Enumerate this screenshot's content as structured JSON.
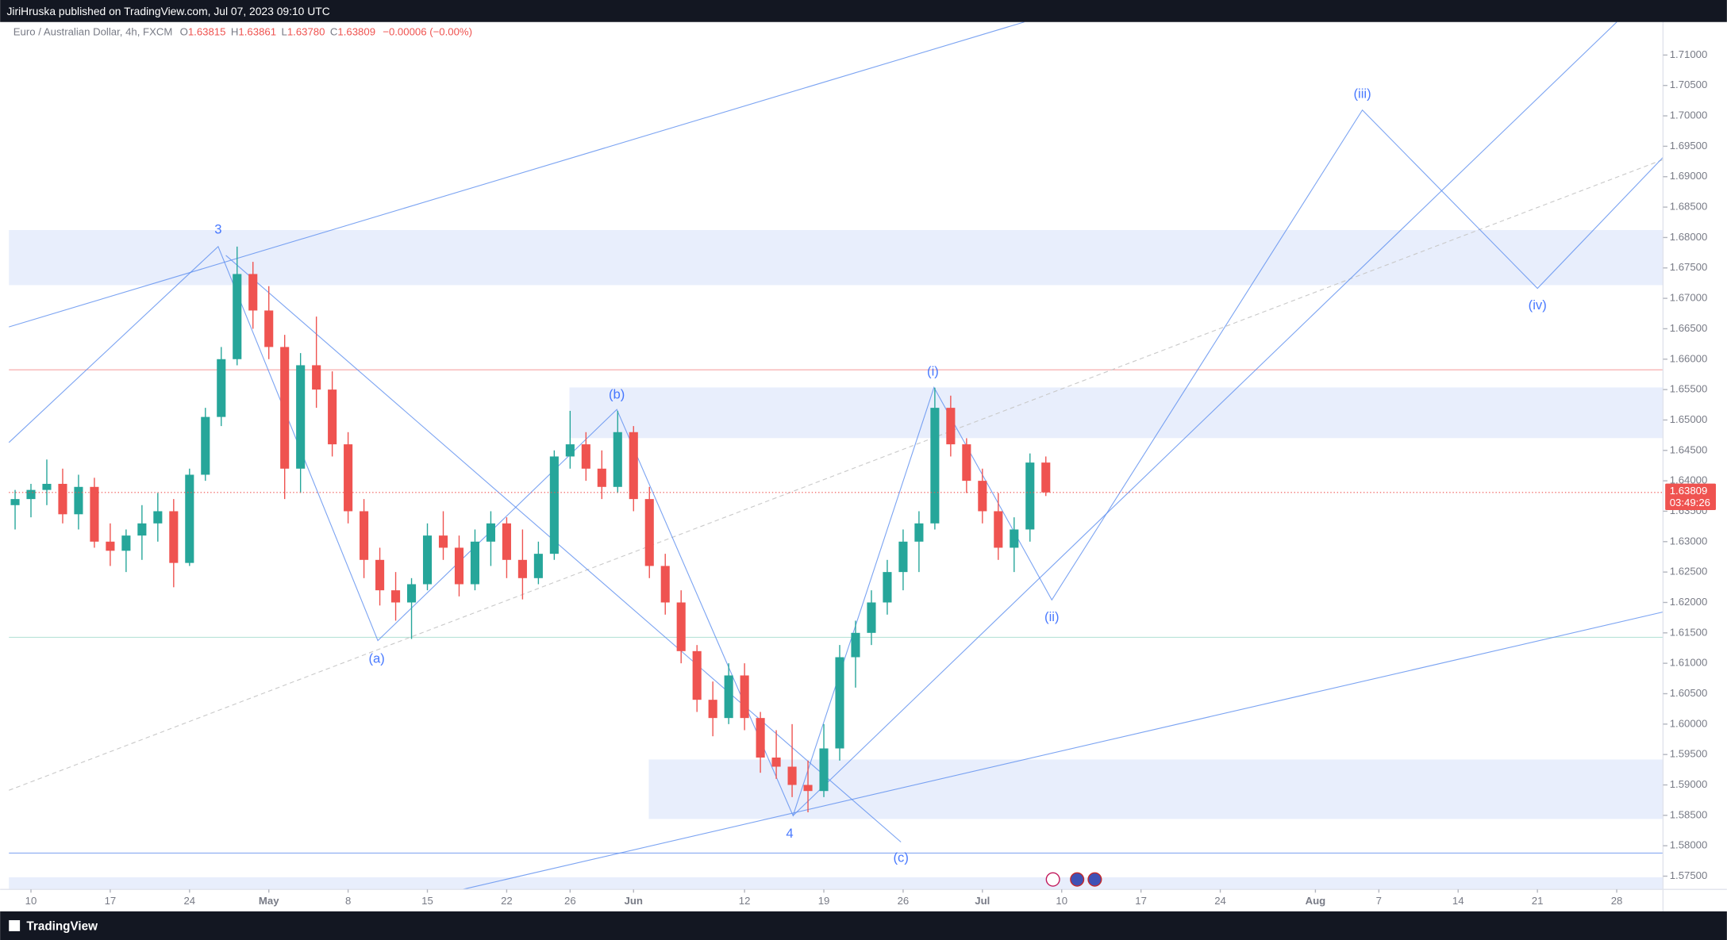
{
  "publisher_line": "JiriHruska published on TradingView.com, Jul 07, 2023 09:10 UTC",
  "brand": "TradingView",
  "chart_data": {
    "type": "candlestick",
    "title": "Euro / Australian Dollar, 4h, FXCM",
    "ohlc_legend": [
      {
        "label": "O",
        "value": 1.63815
      },
      {
        "label": "H",
        "value": 1.63861
      },
      {
        "label": "L",
        "value": 1.6378
      },
      {
        "label": "C",
        "value": 1.63809
      }
    ],
    "ohlc_legend_labels": [
      "1.63815",
      "1.63861",
      "1.63780",
      "1.63809"
    ],
    "change": "−0.00006 (−0.00%)",
    "last_price": 1.63809,
    "countdown": "03:49:26",
    "up_color": "#26a69a",
    "down_color": "#ef5350",
    "x": [
      -1,
      0,
      1,
      2,
      3,
      4,
      5,
      6,
      7,
      8,
      9,
      10,
      11,
      12,
      13,
      14,
      15,
      16,
      17,
      18,
      19,
      20,
      21,
      22,
      23,
      24,
      25,
      26,
      27,
      28,
      29,
      30,
      31,
      32,
      33,
      34,
      35,
      36,
      37,
      38,
      39,
      40,
      41,
      42,
      43,
      44,
      45,
      46,
      47,
      48,
      49,
      50,
      51,
      52,
      53,
      54,
      55,
      56,
      57,
      58,
      59,
      60,
      61,
      62,
      63,
      64
    ],
    "open": [
      1.636,
      1.637,
      1.6385,
      1.6395,
      1.6345,
      1.639,
      1.63,
      1.6285,
      1.631,
      1.633,
      1.635,
      1.6265,
      1.641,
      1.6505,
      1.66,
      1.674,
      1.668,
      1.662,
      1.642,
      1.659,
      1.655,
      1.646,
      1.635,
      1.627,
      1.622,
      1.62,
      1.623,
      1.631,
      1.629,
      1.623,
      1.63,
      1.633,
      1.627,
      1.624,
      1.628,
      1.644,
      1.646,
      1.642,
      1.639,
      1.648,
      1.637,
      1.626,
      1.62,
      1.612,
      1.604,
      1.601,
      1.608,
      1.601,
      1.5945,
      1.593,
      1.59,
      1.589,
      1.596,
      1.611,
      1.615,
      1.62,
      1.625,
      1.63,
      1.633,
      1.652,
      1.646,
      1.64,
      1.635,
      1.629,
      1.632,
      1.643
    ],
    "high": [
      1.6385,
      1.6395,
      1.6435,
      1.642,
      1.641,
      1.6405,
      1.633,
      1.632,
      1.636,
      1.638,
      1.637,
      1.642,
      1.652,
      1.662,
      1.6785,
      1.676,
      1.672,
      1.664,
      1.661,
      1.667,
      1.658,
      1.648,
      1.637,
      1.629,
      1.625,
      1.624,
      1.633,
      1.635,
      1.631,
      1.632,
      1.635,
      1.634,
      1.632,
      1.63,
      1.645,
      1.6515,
      1.648,
      1.645,
      1.6515,
      1.649,
      1.639,
      1.628,
      1.622,
      1.613,
      1.607,
      1.61,
      1.61,
      1.602,
      1.599,
      1.6,
      1.594,
      1.6,
      1.613,
      1.617,
      1.622,
      1.627,
      1.632,
      1.635,
      1.6553,
      1.654,
      1.647,
      1.642,
      1.638,
      1.634,
      1.6445,
      1.644
    ],
    "low": [
      1.632,
      1.634,
      1.636,
      1.633,
      1.632,
      1.629,
      1.626,
      1.625,
      1.627,
      1.63,
      1.6225,
      1.626,
      1.64,
      1.649,
      1.659,
      1.665,
      1.66,
      1.637,
      1.638,
      1.652,
      1.644,
      1.633,
      1.624,
      1.6195,
      1.617,
      1.614,
      1.622,
      1.627,
      1.621,
      1.622,
      1.626,
      1.624,
      1.6205,
      1.623,
      1.627,
      1.642,
      1.64,
      1.637,
      1.638,
      1.635,
      1.624,
      1.618,
      1.61,
      1.602,
      1.598,
      1.6,
      1.599,
      1.592,
      1.591,
      1.588,
      1.5855,
      1.588,
      1.594,
      1.606,
      1.613,
      1.618,
      1.622,
      1.625,
      1.632,
      1.644,
      1.638,
      1.633,
      1.627,
      1.625,
      1.63,
      1.6375
    ],
    "close": [
      1.637,
      1.6385,
      1.6395,
      1.6345,
      1.639,
      1.63,
      1.6285,
      1.631,
      1.633,
      1.635,
      1.6265,
      1.641,
      1.6505,
      1.66,
      1.674,
      1.668,
      1.662,
      1.642,
      1.659,
      1.655,
      1.646,
      1.635,
      1.627,
      1.622,
      1.62,
      1.623,
      1.631,
      1.629,
      1.623,
      1.63,
      1.633,
      1.627,
      1.624,
      1.628,
      1.644,
      1.646,
      1.642,
      1.639,
      1.648,
      1.637,
      1.626,
      1.62,
      1.612,
      1.604,
      1.601,
      1.608,
      1.601,
      1.5945,
      1.593,
      1.59,
      1.589,
      1.596,
      1.611,
      1.615,
      1.62,
      1.625,
      1.63,
      1.633,
      1.652,
      1.646,
      1.64,
      1.635,
      1.629,
      1.632,
      1.643,
      1.63809
    ],
    "xlim": [
      -1.39,
      102.92
    ],
    "xticks": [
      {
        "value": 0,
        "label": "10"
      },
      {
        "value": 5,
        "label": "17"
      },
      {
        "value": 10,
        "label": "24"
      },
      {
        "value": 15,
        "label": "May"
      },
      {
        "value": 20,
        "label": "8"
      },
      {
        "value": 25,
        "label": "15"
      },
      {
        "value": 30,
        "label": "22"
      },
      {
        "value": 34,
        "label": "26"
      },
      {
        "value": 38,
        "label": "Jun"
      },
      {
        "value": 45,
        "label": "12"
      },
      {
        "value": 50,
        "label": "19"
      },
      {
        "value": 55,
        "label": "26"
      },
      {
        "value": 60,
        "label": "Jul"
      },
      {
        "value": 65,
        "label": "10"
      },
      {
        "value": 70,
        "label": "17"
      },
      {
        "value": 75,
        "label": "24"
      },
      {
        "value": 81,
        "label": "Aug"
      },
      {
        "value": 85,
        "label": "7"
      },
      {
        "value": 90,
        "label": "14"
      },
      {
        "value": 95,
        "label": "21"
      },
      {
        "value": 100,
        "label": "28"
      }
    ],
    "ylim": [
      1.56921,
      1.71543
    ],
    "yticks": [
      {
        "value": 1.575,
        "label": "1.57500"
      },
      {
        "value": 1.58,
        "label": "1.58000"
      },
      {
        "value": 1.585,
        "label": "1.58500"
      },
      {
        "value": 1.59,
        "label": "1.59000"
      },
      {
        "value": 1.595,
        "label": "1.59500"
      },
      {
        "value": 1.6,
        "label": "1.60000"
      },
      {
        "value": 1.605,
        "label": "1.60500"
      },
      {
        "value": 1.61,
        "label": "1.61000"
      },
      {
        "value": 1.615,
        "label": "1.61500"
      },
      {
        "value": 1.62,
        "label": "1.62000"
      },
      {
        "value": 1.625,
        "label": "1.62500"
      },
      {
        "value": 1.63,
        "label": "1.63000"
      },
      {
        "value": 1.635,
        "label": "1.63500"
      },
      {
        "value": 1.64,
        "label": "1.64000"
      },
      {
        "value": 1.645,
        "label": "1.64500"
      },
      {
        "value": 1.65,
        "label": "1.65000"
      },
      {
        "value": 1.655,
        "label": "1.65500"
      },
      {
        "value": 1.66,
        "label": "1.66000"
      },
      {
        "value": 1.665,
        "label": "1.66500"
      },
      {
        "value": 1.67,
        "label": "1.67000"
      },
      {
        "value": 1.675,
        "label": "1.67500"
      },
      {
        "value": 1.68,
        "label": "1.68000"
      },
      {
        "value": 1.685,
        "label": "1.68500"
      },
      {
        "value": 1.69,
        "label": "1.69000"
      },
      {
        "value": 1.695,
        "label": "1.69500"
      },
      {
        "value": 1.7,
        "label": "1.70000"
      },
      {
        "value": 1.705,
        "label": "1.70500"
      },
      {
        "value": 1.71,
        "label": "1.71000"
      }
    ],
    "wave_labels": [
      "3",
      "(a)",
      "(b)",
      "4",
      "(c)",
      "(i)",
      "(ii)",
      "(iii)",
      "(iv)"
    ]
  }
}
